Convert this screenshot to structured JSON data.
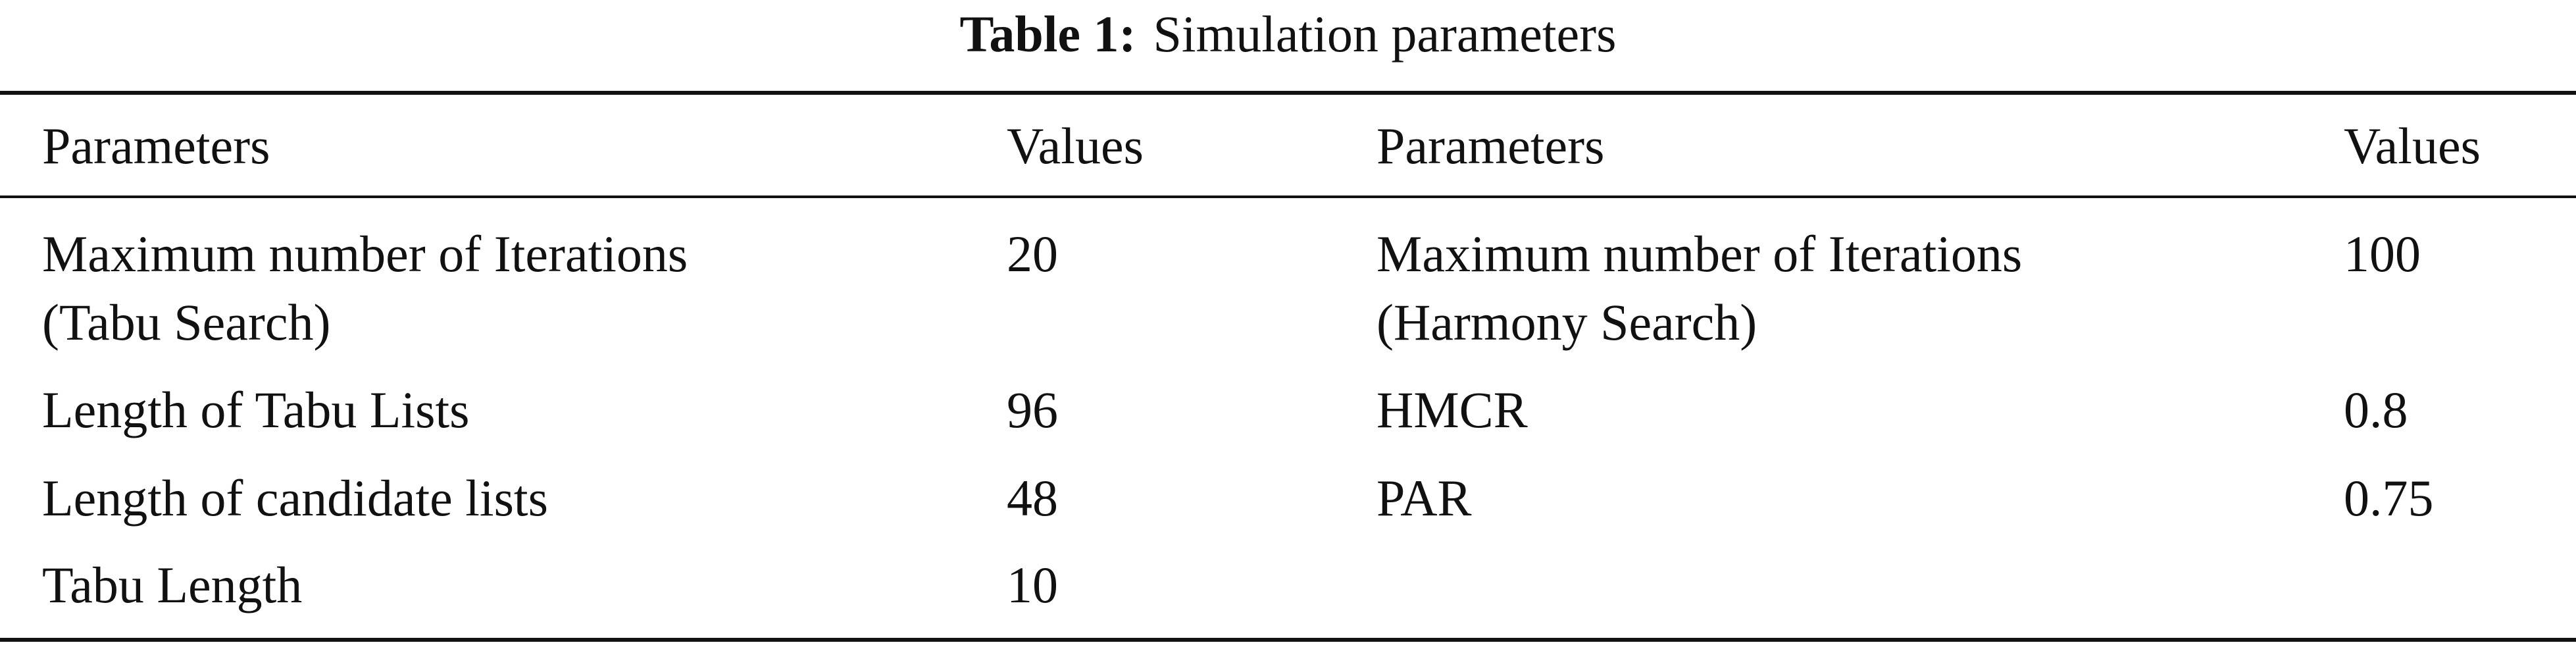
{
  "caption": {
    "label": "Table 1:",
    "title": "Simulation parameters"
  },
  "table": {
    "headers": [
      "Parameters",
      "Values",
      "Parameters",
      "Values"
    ],
    "rows": [
      {
        "param_left": [
          "Maximum number of Iterations",
          "(Tabu Search)"
        ],
        "value_left": "20",
        "param_right": [
          "Maximum number of Iterations",
          "(Harmony Search)"
        ],
        "value_right": "100"
      },
      {
        "param_left": [
          "Length of Tabu Lists"
        ],
        "value_left": "96",
        "param_right": [
          "HMCR"
        ],
        "value_right": "0.8"
      },
      {
        "param_left": [
          "Length of candidate lists"
        ],
        "value_left": "48",
        "param_right": [
          "PAR"
        ],
        "value_right": "0.75"
      },
      {
        "param_left": [
          "Tabu Length"
        ],
        "value_left": "10",
        "param_right": [],
        "value_right": ""
      }
    ]
  }
}
